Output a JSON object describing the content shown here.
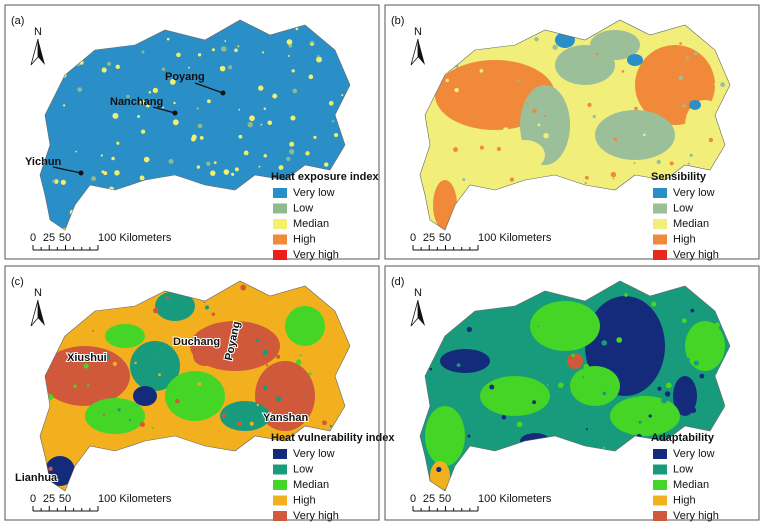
{
  "panels": [
    {
      "label": "(a)",
      "north": "N",
      "legend": {
        "title": "Heat exposure index",
        "items": [
          {
            "label": "Very low",
            "color": "#2a8fc7"
          },
          {
            "label": "Low",
            "color": "#8fb98e"
          },
          {
            "label": "Median",
            "color": "#f2f06c"
          },
          {
            "label": "High",
            "color": "#f28a3a"
          },
          {
            "label": "Very high",
            "color": "#ee1c1c"
          }
        ]
      },
      "places": [
        "Poyang",
        "Nanchang",
        "Yichun"
      ],
      "scale": [
        "0",
        "25",
        "50",
        "100 Kilometers"
      ]
    },
    {
      "label": "(b)",
      "north": "N",
      "legend": {
        "title": "Sensibility",
        "items": [
          {
            "label": "Very low",
            "color": "#2a8fc7"
          },
          {
            "label": "Low",
            "color": "#9bbf98"
          },
          {
            "label": "Median",
            "color": "#f1ef7a"
          },
          {
            "label": "High",
            "color": "#f08a3a"
          },
          {
            "label": "Very high",
            "color": "#e8281e"
          }
        ]
      },
      "places": [],
      "scale": [
        "0",
        "25",
        "50",
        "100 Kilometers"
      ]
    },
    {
      "label": "(c)",
      "north": "N",
      "legend": {
        "title": "Heat vulnerability index",
        "items": [
          {
            "label": "Very low",
            "color": "#142a7a"
          },
          {
            "label": "Low",
            "color": "#179b7c"
          },
          {
            "label": "Median",
            "color": "#44d526"
          },
          {
            "label": "High",
            "color": "#f2b01e"
          },
          {
            "label": "Very high",
            "color": "#d0593c"
          }
        ]
      },
      "places": [
        "Xiushui",
        "Duchang",
        "Poyang",
        "Yanshan",
        "Lianhua"
      ],
      "scale": [
        "0",
        "25",
        "50",
        "100 Kilometers"
      ]
    },
    {
      "label": "(d)",
      "north": "N",
      "legend": {
        "title": "Adaptability",
        "items": [
          {
            "label": "Very low",
            "color": "#142a7a"
          },
          {
            "label": "Low",
            "color": "#179b7c"
          },
          {
            "label": "Median",
            "color": "#44d526"
          },
          {
            "label": "High",
            "color": "#f2b01e"
          },
          {
            "label": "Very high",
            "color": "#d0593c"
          }
        ]
      },
      "places": [],
      "scale": [
        "0",
        "25",
        "50",
        "100 Kilometers"
      ]
    }
  ]
}
